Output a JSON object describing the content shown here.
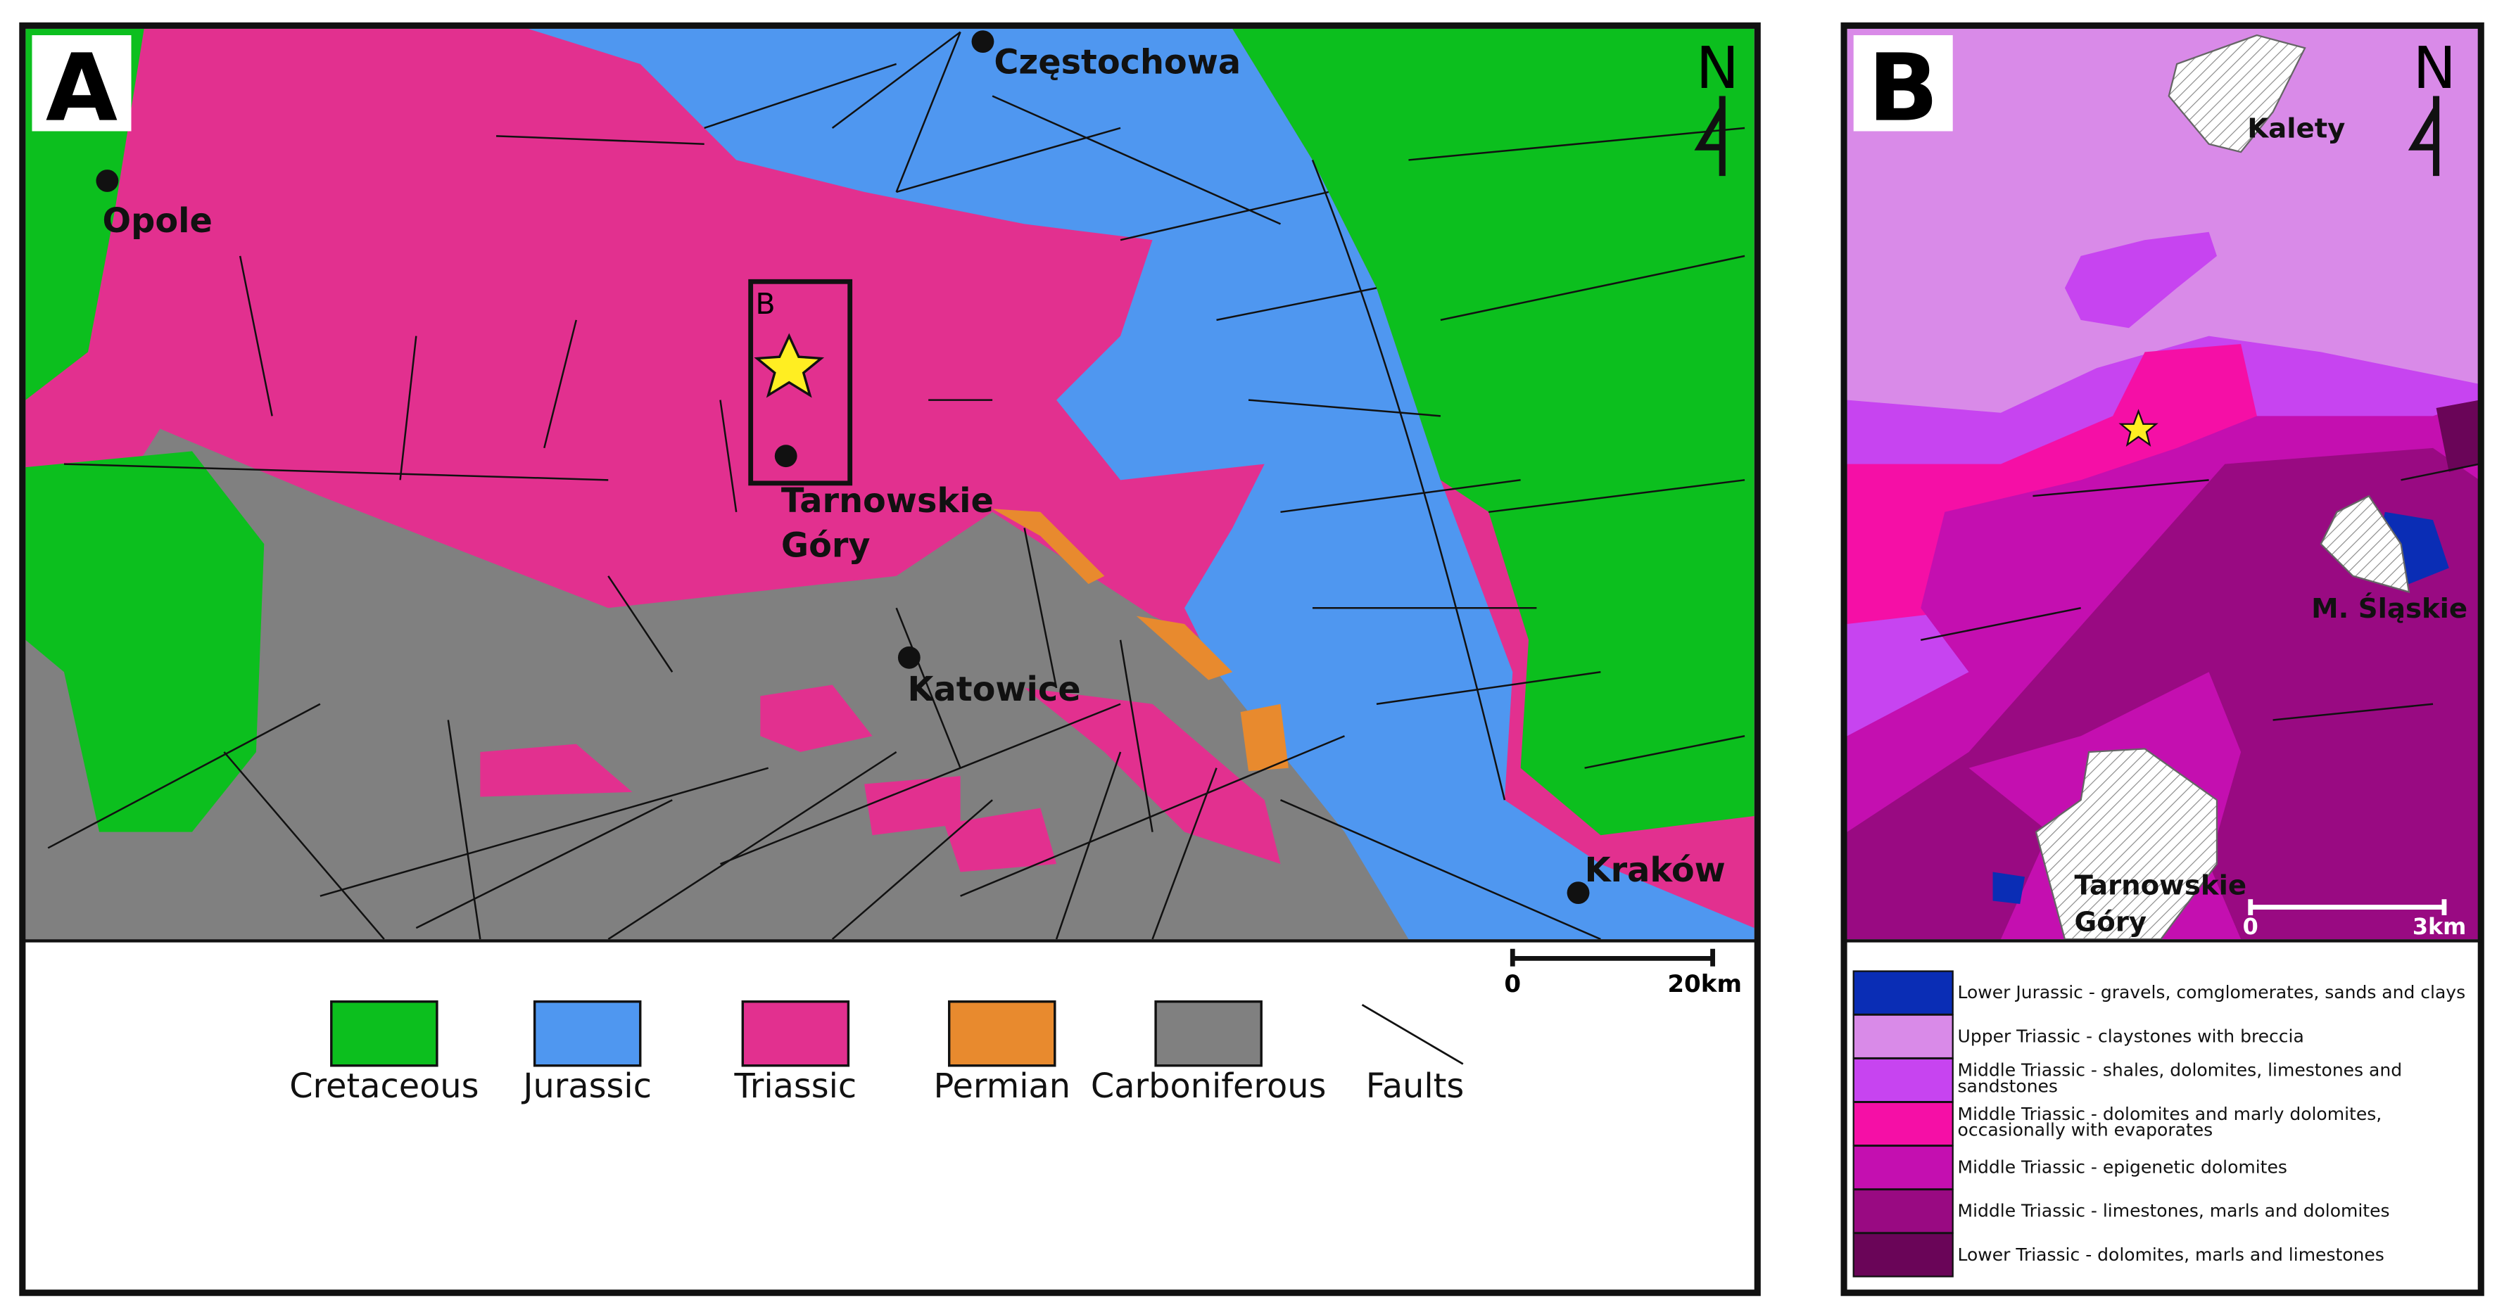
{
  "panel_a": {
    "label": "A",
    "north": "N",
    "inset_label": "B",
    "cities": {
      "czestochowa": "Częstochowa",
      "opole": "Opole",
      "tarnowskie_gory": [
        "Tarnowskie",
        "Góry"
      ],
      "katowice": "Katowice",
      "krakow": "Kraków"
    },
    "scale": {
      "start": "0",
      "end": "20km"
    },
    "legend": [
      {
        "name": "Cretaceous",
        "color": "#0cbf1e"
      },
      {
        "name": "Jurassic",
        "color": "#4f97f0"
      },
      {
        "name": "Triassic",
        "color": "#e2308f"
      },
      {
        "name": "Permian",
        "color": "#e88a2e"
      },
      {
        "name": "Carboniferous",
        "color": "#808080"
      },
      {
        "name": "Faults"
      }
    ]
  },
  "panel_b": {
    "label": "B",
    "north": "N",
    "cities": {
      "kalety": "Kalety",
      "miasteczko": "M. Śląskie",
      "tarnowskie_gory": [
        "Tarnowskie",
        "Góry"
      ]
    },
    "scale": {
      "start": "0",
      "end": "3km"
    },
    "legend": [
      {
        "lines": [
          "Lower Jurassic - gravels, comglomerates, sands and clays"
        ],
        "color": "#0a2db5"
      },
      {
        "lines": [
          "Upper Triassic - claystones with breccia"
        ],
        "color": "#d98ae8"
      },
      {
        "lines": [
          "Middle Triassic - shales, dolomites, limestones and",
          "sandstones"
        ],
        "color": "#c744f0"
      },
      {
        "lines": [
          "Middle Triassic - dolomites and marly dolomites,",
          "occasionally with evaporates"
        ],
        "color": "#f50fa6"
      },
      {
        "lines": [
          "Middle Triassic - epigenetic dolomites"
        ],
        "color": "#c40fb0"
      },
      {
        "lines": [
          "Middle Triassic - limestones, marls and dolomites"
        ],
        "color": "#990a82"
      },
      {
        "lines": [
          "Lower Triassic - dolomites, marls and limestones"
        ],
        "color": "#6a0558"
      }
    ]
  }
}
